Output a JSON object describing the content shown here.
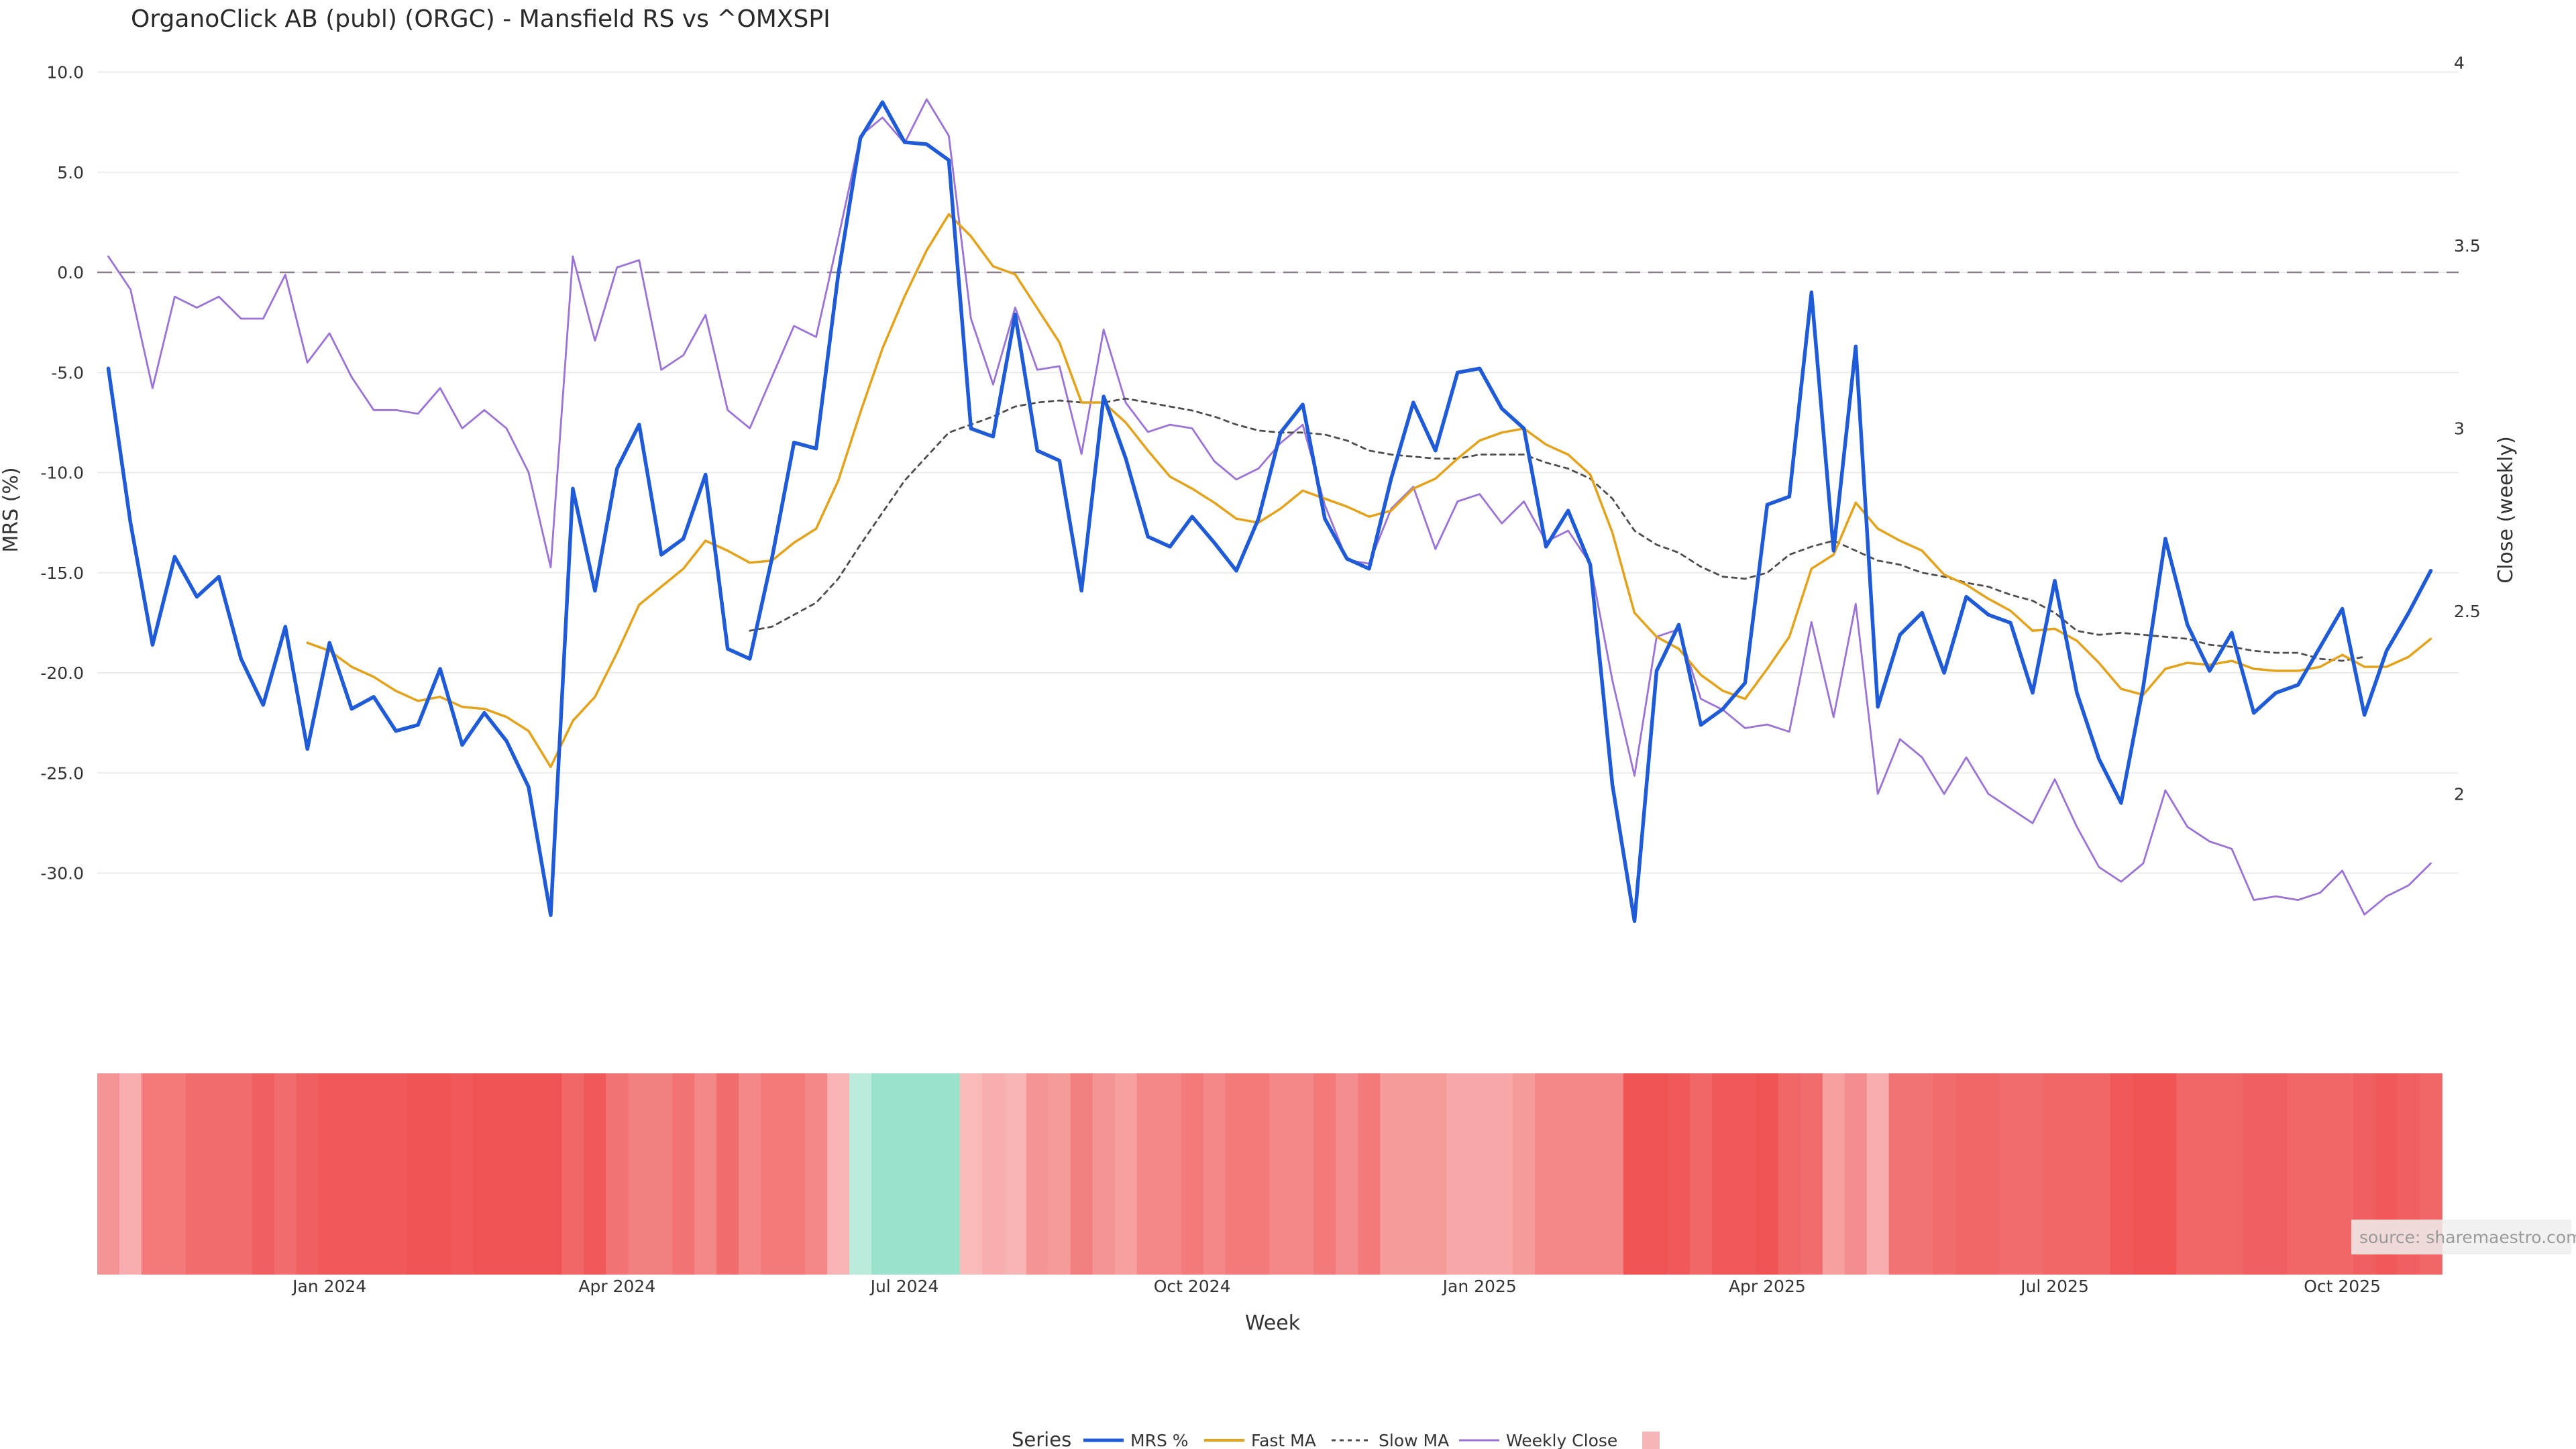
{
  "chart_data": {
    "type": "line",
    "title": "OrganoClick AB (publ) (ORGC) - Mansfield RS vs ^OMXSPI",
    "xlabel": "Week",
    "ylabel": "MRS (%)",
    "y2label": "Close (weekly)",
    "ylim": [
      -35,
      12
    ],
    "y2lim": [
      1.45,
      4.1
    ],
    "yticks": [
      10,
      5,
      0,
      -5,
      -10,
      -15,
      -20,
      -25,
      -30
    ],
    "y2ticks": [
      4,
      3.5,
      3,
      2.5,
      2
    ],
    "xticks": [
      {
        "label": "Jan 2024",
        "week": 10
      },
      {
        "label": "Apr 2024",
        "week": 23
      },
      {
        "label": "Jul 2024",
        "week": 36
      },
      {
        "label": "Oct 2024",
        "week": 49
      },
      {
        "label": "Jan 2025",
        "week": 62
      },
      {
        "label": "Apr 2025",
        "week": 75
      },
      {
        "label": "Jul 2025",
        "week": 88
      },
      {
        "label": "Oct 2025",
        "week": 101
      }
    ],
    "zero_line": 0,
    "grid": true,
    "legend_title": "Series",
    "legend_position": "bottom",
    "source": "source: sharemaestro.com",
    "colors": {
      "mrs": "#1f5bd6",
      "fast": "#e3a21a",
      "slow": "#4d4d4d",
      "close": "#9b72d6",
      "zero": "#8a7d8c",
      "neg": "#ef5353",
      "pos": "#6fd6b4",
      "swatch": "#f4b6b8"
    },
    "series": [
      {
        "name": "MRS %",
        "start_week": 0,
        "values": [
          -4.8,
          -12.5,
          -18.6,
          -14.2,
          -16.2,
          -15.2,
          -19.3,
          -21.6,
          -17.7,
          -23.8,
          -18.5,
          -21.8,
          -21.2,
          -22.9,
          -22.6,
          -19.8,
          -23.6,
          -22.0,
          -23.4,
          -25.7,
          -32.1,
          -10.8,
          -15.9,
          -9.8,
          -7.6,
          -14.1,
          -13.3,
          -10.1,
          -18.8,
          -19.3,
          -14.3,
          -8.5,
          -8.8,
          -0.1,
          6.7,
          8.5,
          6.5,
          6.4,
          5.6,
          -7.8,
          -8.2,
          -2.1,
          -8.9,
          -9.4,
          -15.9,
          -6.2,
          -9.3,
          -13.2,
          -13.7,
          -12.2,
          -13.5,
          -14.9,
          -12.3,
          -8.0,
          -6.6,
          -12.3,
          -14.3,
          -14.8,
          -10.3,
          -6.5,
          -8.9,
          -5.0,
          -4.8,
          -6.8,
          -7.8,
          -13.7,
          -11.9,
          -14.6,
          -25.6,
          -32.4,
          -19.9,
          -17.6,
          -22.6,
          -21.8,
          -20.5,
          -11.6,
          -11.2,
          -1.0,
          -13.9,
          -3.7,
          -21.7,
          -18.1,
          -17.0,
          -20.0,
          -16.2,
          -17.1,
          -17.5,
          -21.0,
          -15.4,
          -21.0,
          -24.3,
          -26.5,
          -20.7,
          -13.3,
          -17.6,
          -19.9,
          -18.0,
          -22.0,
          -21.0,
          -20.6,
          -18.7,
          -16.8,
          -22.1,
          -18.9,
          -17.0,
          -14.9
        ]
      },
      {
        "name": "Fast MA",
        "start_week": 9,
        "values": [
          -18.5,
          -18.9,
          -19.7,
          -20.2,
          -20.9,
          -21.4,
          -21.2,
          -21.7,
          -21.8,
          -22.2,
          -22.9,
          -24.7,
          -22.4,
          -21.2,
          -19.0,
          -16.6,
          -15.7,
          -14.8,
          -13.4,
          -13.9,
          -14.5,
          -14.4,
          -13.5,
          -12.8,
          -10.4,
          -7.0,
          -3.8,
          -1.2,
          1.1,
          2.9,
          1.8,
          0.3,
          -0.1,
          -1.8,
          -3.5,
          -6.5,
          -6.5,
          -7.5,
          -8.9,
          -10.2,
          -10.8,
          -11.5,
          -12.3,
          -12.5,
          -11.8,
          -10.9,
          -11.3,
          -11.7,
          -12.2,
          -11.9,
          -10.8,
          -10.3,
          -9.3,
          -8.4,
          -8.0,
          -7.8,
          -8.6,
          -9.1,
          -10.1,
          -13.0,
          -17.0,
          -18.2,
          -18.8,
          -20.1,
          -20.9,
          -21.3,
          -19.8,
          -18.2,
          -14.8,
          -14.1,
          -11.5,
          -12.8,
          -13.4,
          -13.9,
          -15.1,
          -15.6,
          -16.3,
          -16.9,
          -17.9,
          -17.8,
          -18.4,
          -19.5,
          -20.8,
          -21.1,
          -19.8,
          -19.5,
          -19.6,
          -19.4,
          -19.8,
          -19.9,
          -19.9,
          -19.7,
          -19.1,
          -19.7,
          -19.7,
          -19.2,
          -18.3
        ]
      },
      {
        "name": "Slow MA",
        "start_week": 29,
        "values": [
          -17.9,
          -17.7,
          -17.1,
          -16.5,
          -15.3,
          -13.6,
          -12.0,
          -10.4,
          -9.2,
          -8.0,
          -7.6,
          -7.2,
          -6.7,
          -6.5,
          -6.4,
          -6.5,
          -6.5,
          -6.3,
          -6.5,
          -6.7,
          -6.9,
          -7.2,
          -7.6,
          -7.9,
          -8.0,
          -8.0,
          -8.1,
          -8.4,
          -8.9,
          -9.1,
          -9.2,
          -9.3,
          -9.3,
          -9.1,
          -9.1,
          -9.1,
          -9.5,
          -9.8,
          -10.3,
          -11.3,
          -12.9,
          -13.6,
          -14.0,
          -14.7,
          -15.2,
          -15.3,
          -15.0,
          -14.1,
          -13.7,
          -13.4,
          -13.9,
          -14.4,
          -14.6,
          -15.0,
          -15.2,
          -15.5,
          -15.7,
          -16.1,
          -16.4,
          -17.0,
          -17.9,
          -18.1,
          -18.0,
          -18.1,
          -18.2,
          -18.3,
          -18.6,
          -18.7,
          -18.9,
          -19.0,
          -19.0,
          -19.3,
          -19.4,
          -19.2
        ]
      },
      {
        "name": "Weekly Close",
        "start_week": 0,
        "values": [
          3.47,
          3.38,
          3.11,
          3.36,
          3.33,
          3.36,
          3.3,
          3.3,
          3.42,
          3.18,
          3.26,
          3.14,
          3.05,
          3.05,
          3.04,
          3.11,
          3.0,
          3.05,
          3.0,
          2.88,
          2.62,
          3.47,
          3.24,
          3.44,
          3.46,
          3.16,
          3.2,
          3.31,
          3.05,
          3.0,
          3.14,
          3.28,
          3.25,
          3.52,
          3.8,
          3.85,
          3.78,
          3.9,
          3.8,
          3.3,
          3.12,
          3.33,
          3.16,
          3.17,
          2.93,
          3.27,
          3.07,
          2.99,
          3.01,
          3.0,
          2.91,
          2.86,
          2.89,
          2.96,
          3.01,
          2.79,
          2.64,
          2.63,
          2.78,
          2.84,
          2.67,
          2.8,
          2.82,
          2.74,
          2.8,
          2.69,
          2.72,
          2.63,
          2.31,
          2.05,
          2.43,
          2.45,
          2.26,
          2.23,
          2.18,
          2.19,
          2.17,
          2.47,
          2.21,
          2.52,
          2.0,
          2.15,
          2.1,
          2.0,
          2.1,
          2.0,
          1.96,
          1.92,
          2.04,
          1.91,
          1.8,
          1.76,
          1.81,
          2.01,
          1.91,
          1.87,
          1.85,
          1.71,
          1.72,
          1.71,
          1.73,
          1.79,
          1.67,
          1.72,
          1.75,
          1.81
        ]
      }
    ],
    "heatstrip": {
      "weeks": 106,
      "values": [
        -0.5,
        -0.3,
        -0.7,
        -0.7,
        -0.8,
        -0.8,
        -0.8,
        -0.9,
        -0.8,
        -0.9,
        -0.95,
        -0.95,
        -0.95,
        -0.95,
        -1.0,
        -1.0,
        -0.95,
        -1.0,
        -1.0,
        -1.0,
        -1.0,
        -0.85,
        -0.95,
        -0.75,
        -0.65,
        -0.65,
        -0.75,
        -0.6,
        -0.8,
        -0.6,
        -0.7,
        -0.7,
        -0.6,
        -0.25,
        0.3,
        0.6,
        0.6,
        0.6,
        0.6,
        -0.2,
        -0.3,
        -0.25,
        -0.5,
        -0.45,
        -0.65,
        -0.5,
        -0.4,
        -0.6,
        -0.6,
        -0.7,
        -0.6,
        -0.7,
        -0.7,
        -0.6,
        -0.6,
        -0.7,
        -0.55,
        -0.7,
        -0.45,
        -0.45,
        -0.45,
        -0.35,
        -0.35,
        -0.35,
        -0.45,
        -0.6,
        -0.6,
        -0.6,
        -0.6,
        -1.0,
        -1.0,
        -0.95,
        -0.85,
        -0.95,
        -0.95,
        -1.0,
        -0.85,
        -0.8,
        -0.4,
        -0.55,
        -0.3,
        -0.75,
        -0.75,
        -0.8,
        -0.85,
        -0.85,
        -0.8,
        -0.8,
        -0.85,
        -0.85,
        -0.85,
        -0.95,
        -1.0,
        -1.0,
        -0.85,
        -0.85,
        -0.85,
        -0.9,
        -0.9,
        -0.85,
        -0.85,
        -0.85,
        -0.9,
        -0.95,
        -0.9,
        -0.85
      ]
    }
  }
}
